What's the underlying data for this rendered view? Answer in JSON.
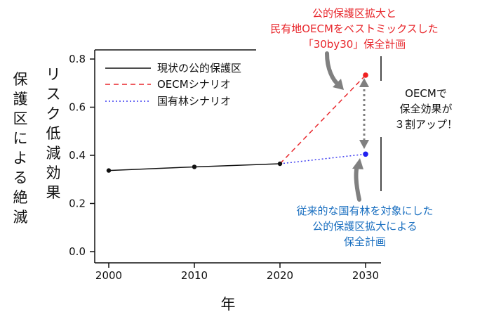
{
  "chart_data": {
    "type": "line",
    "ylabel": "保護区による絶滅リスク低減効果",
    "xlabel": "年",
    "x": [
      2000,
      2010,
      2020,
      2030
    ],
    "xticks": [
      "2000",
      "2010",
      "2020",
      "2030"
    ],
    "ylim": [
      -0.02,
      0.83
    ],
    "yticks": [
      "0.0",
      "0.2",
      "0.4",
      "0.6",
      "0.8"
    ],
    "legend_position": "top-left",
    "series": [
      {
        "name": "現状の公的保護区",
        "x": [
          2000,
          2010,
          2020
        ],
        "values": [
          0.337,
          0.352,
          0.365
        ],
        "color": "#111111",
        "style": "solid"
      },
      {
        "name": "OECMシナリオ",
        "x": [
          2020,
          2030
        ],
        "values": [
          0.365,
          0.733
        ],
        "color": "#e8262b",
        "style": "dashed"
      },
      {
        "name": "国有林シナリオ",
        "x": [
          2020,
          2030
        ],
        "values": [
          0.365,
          0.405
        ],
        "color": "#3b3bf0",
        "style": "dotted"
      }
    ],
    "annotations": {
      "top_red": [
        "公的保護区拡大と",
        "民有地OECMをベストミックスした",
        "「30by30」保全計画"
      ],
      "right_black": [
        "OECMで",
        "保全効果が",
        "３割アップ！"
      ],
      "bottom_blue": [
        "従来的な国有林を対象にした",
        "公的保護区拡大による",
        "保全計画"
      ]
    },
    "colors": {
      "red": "#e8262b",
      "blue": "#1a6fc0",
      "grey_arrow": "#808080",
      "dot_blue": "#2020f0",
      "dot_red": "#f02020"
    }
  }
}
